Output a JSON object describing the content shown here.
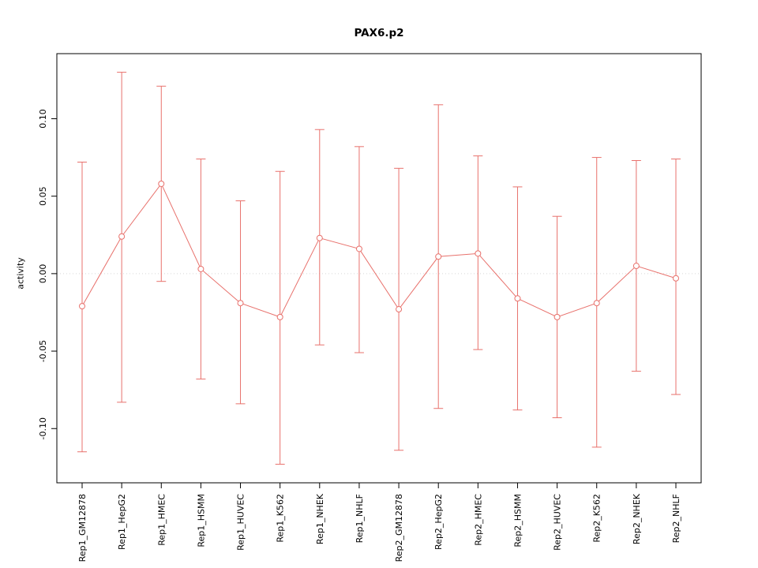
{
  "chart_data": {
    "type": "line",
    "title": "PAX6.p2",
    "xlabel": "",
    "ylabel": "activity",
    "ylim": [
      -0.135,
      0.142
    ],
    "yticks": [
      -0.1,
      -0.05,
      0.0,
      0.05,
      0.1
    ],
    "zero_reference_line": 0,
    "grid": "dotted horizontal line at y=0 only",
    "legend_position": "none",
    "series_color": "#e8716c",
    "zero_line_color": "#d8d8d8",
    "categories": [
      "Rep1_GM12878",
      "Rep1_HepG2",
      "Rep1_HMEC",
      "Rep1_HSMM",
      "Rep1_HUVEC",
      "Rep1_K562",
      "Rep1_NHEK",
      "Rep1_NHLF",
      "Rep2_GM12878",
      "Rep2_HepG2",
      "Rep2_HMEC",
      "Rep2_HSMM",
      "Rep2_HUVEC",
      "Rep2_K562",
      "Rep2_NHEK",
      "Rep2_NHLF"
    ],
    "series": [
      {
        "name": "activity",
        "values": [
          -0.021,
          0.024,
          0.058,
          0.003,
          -0.019,
          -0.028,
          0.023,
          0.016,
          -0.023,
          0.011,
          0.013,
          -0.016,
          -0.028,
          -0.019,
          0.005,
          -0.003
        ],
        "ci_lower": [
          -0.115,
          -0.083,
          -0.005,
          -0.068,
          -0.084,
          -0.123,
          -0.046,
          -0.051,
          -0.114,
          -0.087,
          -0.049,
          -0.088,
          -0.093,
          -0.112,
          -0.063,
          -0.078
        ],
        "ci_upper": [
          0.072,
          0.13,
          0.121,
          0.074,
          0.047,
          0.066,
          0.093,
          0.082,
          0.068,
          0.109,
          0.076,
          0.056,
          0.037,
          0.075,
          0.073,
          0.074
        ]
      }
    ]
  }
}
